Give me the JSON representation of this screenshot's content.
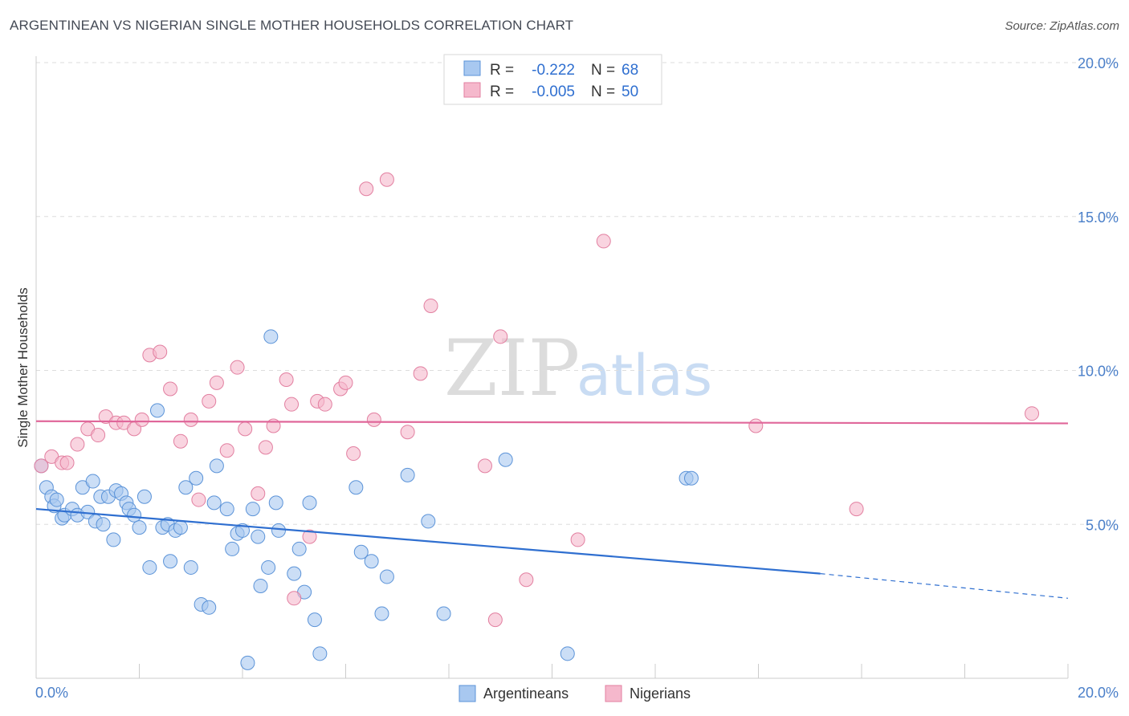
{
  "title": "ARGENTINEAN VS NIGERIAN SINGLE MOTHER HOUSEHOLDS CORRELATION CHART",
  "source": "Source: ZipAtlas.com",
  "watermark": {
    "zip": "ZIP",
    "atlas": "atlas"
  },
  "legend": {
    "rows": [
      {
        "r_label": "R =",
        "r_value": "-0.222",
        "n_label": "N =",
        "n_value": "68",
        "color": "#a8c8f0"
      },
      {
        "r_label": "R =",
        "r_value": "-0.005",
        "n_label": "N =",
        "n_value": "50",
        "color": "#f5b8cc"
      }
    ]
  },
  "bottom_legend": [
    {
      "label": "Argentineans",
      "color": "#a8c8f0"
    },
    {
      "label": "Nigerians",
      "color": "#f5b8cc"
    }
  ],
  "chart_data": {
    "type": "scatter",
    "title": "ARGENTINEAN VS NIGERIAN SINGLE MOTHER HOUSEHOLDS CORRELATION CHART",
    "xlabel": "",
    "ylabel": "Single Mother Households",
    "xlim": [
      0,
      20
    ],
    "ylim": [
      0,
      20.5
    ],
    "x_tick_labels": [
      "0.0%",
      "20.0%"
    ],
    "y_tick_labels": [
      "5.0%",
      "10.0%",
      "15.0%",
      "20.0%"
    ],
    "y_ticks": [
      5,
      10,
      15,
      20
    ],
    "series": [
      {
        "name": "Argentineans",
        "color": "#a8c8f0",
        "edge": "#5b93d8",
        "trend": {
          "x0": 0,
          "y0": 5.5,
          "x1": 15.2,
          "y1": 3.4,
          "dash_x1": 20,
          "dash_y1": 2.6,
          "color": "#2f6fd0"
        },
        "points": [
          [
            0.1,
            6.9
          ],
          [
            0.2,
            6.2
          ],
          [
            0.3,
            5.9
          ],
          [
            0.35,
            5.6
          ],
          [
            0.4,
            5.8
          ],
          [
            0.5,
            5.2
          ],
          [
            0.55,
            5.3
          ],
          [
            0.7,
            5.5
          ],
          [
            0.8,
            5.3
          ],
          [
            0.9,
            6.2
          ],
          [
            1.0,
            5.4
          ],
          [
            1.1,
            6.4
          ],
          [
            1.15,
            5.1
          ],
          [
            1.25,
            5.9
          ],
          [
            1.3,
            5.0
          ],
          [
            1.4,
            5.9
          ],
          [
            1.5,
            4.5
          ],
          [
            1.55,
            6.1
          ],
          [
            1.65,
            6.0
          ],
          [
            1.75,
            5.7
          ],
          [
            1.8,
            5.5
          ],
          [
            1.9,
            5.3
          ],
          [
            2.0,
            4.9
          ],
          [
            2.1,
            5.9
          ],
          [
            2.2,
            3.6
          ],
          [
            2.35,
            8.7
          ],
          [
            2.45,
            4.9
          ],
          [
            2.55,
            5.0
          ],
          [
            2.6,
            3.8
          ],
          [
            2.7,
            4.8
          ],
          [
            2.8,
            4.9
          ],
          [
            2.9,
            6.2
          ],
          [
            3.0,
            3.6
          ],
          [
            3.1,
            6.5
          ],
          [
            3.2,
            2.4
          ],
          [
            3.35,
            2.3
          ],
          [
            3.45,
            5.7
          ],
          [
            3.5,
            6.9
          ],
          [
            3.7,
            5.5
          ],
          [
            3.8,
            4.2
          ],
          [
            3.9,
            4.7
          ],
          [
            4.0,
            4.8
          ],
          [
            4.1,
            0.5
          ],
          [
            4.2,
            5.5
          ],
          [
            4.3,
            4.6
          ],
          [
            4.35,
            3.0
          ],
          [
            4.5,
            3.6
          ],
          [
            4.55,
            11.1
          ],
          [
            4.65,
            5.7
          ],
          [
            4.7,
            4.8
          ],
          [
            5.0,
            3.4
          ],
          [
            5.1,
            4.2
          ],
          [
            5.2,
            2.8
          ],
          [
            5.3,
            5.7
          ],
          [
            5.4,
            1.9
          ],
          [
            5.5,
            0.8
          ],
          [
            6.2,
            6.2
          ],
          [
            6.3,
            4.1
          ],
          [
            6.5,
            3.8
          ],
          [
            6.7,
            2.1
          ],
          [
            6.8,
            3.3
          ],
          [
            7.2,
            6.6
          ],
          [
            7.6,
            5.1
          ],
          [
            7.9,
            2.1
          ],
          [
            9.1,
            7.1
          ],
          [
            10.3,
            0.8
          ],
          [
            12.6,
            6.5
          ],
          [
            12.7,
            6.5
          ]
        ]
      },
      {
        "name": "Nigerians",
        "color": "#f5b8cc",
        "edge": "#e27fa0",
        "trend": {
          "x0": 0,
          "y0": 8.35,
          "x1": 20,
          "y1": 8.28,
          "color": "#e0679a"
        },
        "points": [
          [
            0.1,
            6.9
          ],
          [
            0.3,
            7.2
          ],
          [
            0.5,
            7.0
          ],
          [
            0.6,
            7.0
          ],
          [
            0.8,
            7.6
          ],
          [
            1.0,
            8.1
          ],
          [
            1.2,
            7.9
          ],
          [
            1.35,
            8.5
          ],
          [
            1.55,
            8.3
          ],
          [
            1.7,
            8.3
          ],
          [
            1.9,
            8.1
          ],
          [
            2.05,
            8.4
          ],
          [
            2.2,
            10.5
          ],
          [
            2.4,
            10.6
          ],
          [
            2.6,
            9.4
          ],
          [
            2.8,
            7.7
          ],
          [
            3.0,
            8.4
          ],
          [
            3.15,
            5.8
          ],
          [
            3.35,
            9.0
          ],
          [
            3.5,
            9.6
          ],
          [
            3.7,
            7.4
          ],
          [
            3.9,
            10.1
          ],
          [
            4.05,
            8.1
          ],
          [
            4.3,
            6.0
          ],
          [
            4.45,
            7.5
          ],
          [
            4.6,
            8.2
          ],
          [
            4.85,
            9.7
          ],
          [
            4.95,
            8.9
          ],
          [
            5.0,
            2.6
          ],
          [
            5.3,
            4.6
          ],
          [
            5.45,
            9.0
          ],
          [
            5.6,
            8.9
          ],
          [
            5.9,
            9.4
          ],
          [
            6.0,
            9.6
          ],
          [
            6.15,
            7.3
          ],
          [
            6.4,
            15.9
          ],
          [
            6.55,
            8.4
          ],
          [
            6.8,
            16.2
          ],
          [
            7.2,
            8.0
          ],
          [
            7.45,
            9.9
          ],
          [
            7.65,
            12.1
          ],
          [
            8.7,
            6.9
          ],
          [
            8.9,
            1.9
          ],
          [
            9.0,
            11.1
          ],
          [
            9.5,
            3.2
          ],
          [
            10.5,
            4.5
          ],
          [
            11.0,
            14.2
          ],
          [
            13.95,
            8.2
          ],
          [
            15.9,
            5.5
          ],
          [
            19.3,
            8.6
          ]
        ]
      }
    ]
  }
}
